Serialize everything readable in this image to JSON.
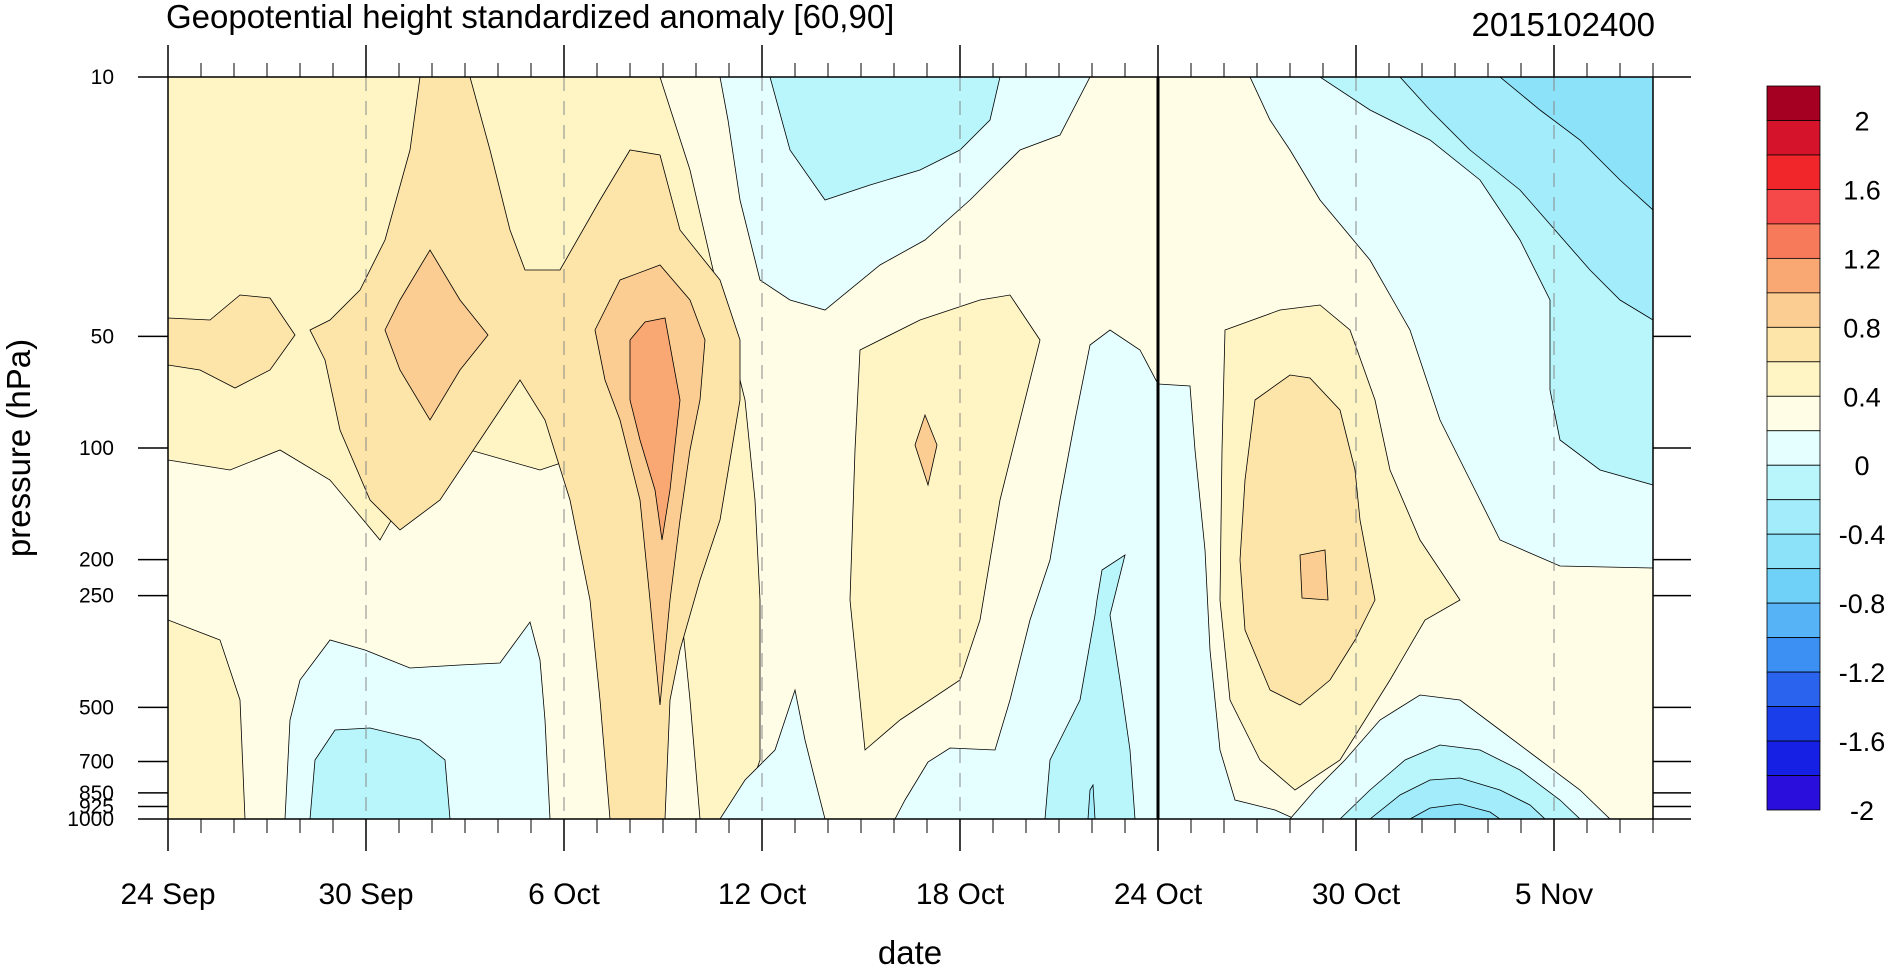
{
  "chart_data": {
    "type": "heatmap",
    "title": "Geopotential height standardized anomaly [60,90]",
    "subtitle": "2015102400",
    "xlabel": "date",
    "ylabel": "pressure (hPa)",
    "x_ticks": [
      {
        "label": "24 Sep",
        "day": 0
      },
      {
        "label": "30 Sep",
        "day": 6
      },
      {
        "label": "6 Oct",
        "day": 12
      },
      {
        "label": "12 Oct",
        "day": 18
      },
      {
        "label": "18 Oct",
        "day": 24
      },
      {
        "label": "24 Oct",
        "day": 30
      },
      {
        "label": "30 Oct",
        "day": 36
      },
      {
        "label": "5 Nov",
        "day": 42
      }
    ],
    "x_range_days": [
      0,
      45
    ],
    "y_ticks": [
      "10",
      "50",
      "100",
      "200",
      "250",
      "500",
      "700",
      "850",
      "925",
      "1000"
    ],
    "y_range": [
      10,
      1000
    ],
    "y_scale": "log",
    "forecast_start": "24 Oct",
    "colorbar": {
      "labels": [
        "2",
        "1.6",
        "1.2",
        "0.8",
        "0.4",
        "0",
        "-0.4",
        "-0.8",
        "-1.2",
        "-1.6",
        "-2"
      ],
      "colors": [
        "#a50021",
        "#d5132a",
        "#f0262a",
        "#f54848",
        "#f77b5a",
        "#f9a773",
        "#fbcd92",
        "#fde4a8",
        "#fef4c4",
        "#fffde5",
        "#e5feff",
        "#b8f6fc",
        "#a2ecfb",
        "#8be2f9",
        "#6fd1f7",
        "#55b3f6",
        "#3c8ff3",
        "#2a64ee",
        "#1b3eeb",
        "#1520e4",
        "#2a0edc"
      ]
    },
    "regions": [
      {
        "level": "0 to 0.2",
        "color": "#fffde5"
      },
      {
        "level": "0.2 to 0.4",
        "color": "#fef4c4"
      },
      {
        "level": "0.4 to 0.6",
        "color": "#fde4a8"
      },
      {
        "level": "0.6 to 0.8",
        "color": "#fbcd92"
      },
      {
        "level": "0.8 to 1.0",
        "color": "#f9a773"
      },
      {
        "level": "0 to -0.2",
        "color": "#e5feff"
      },
      {
        "level": "-0.2 to -0.4",
        "color": "#b8f6fc"
      },
      {
        "level": "-0.4 to -0.6",
        "color": "#a2ecfb"
      },
      {
        "level": "-0.6 to -0.8",
        "color": "#8be2f9"
      }
    ]
  }
}
